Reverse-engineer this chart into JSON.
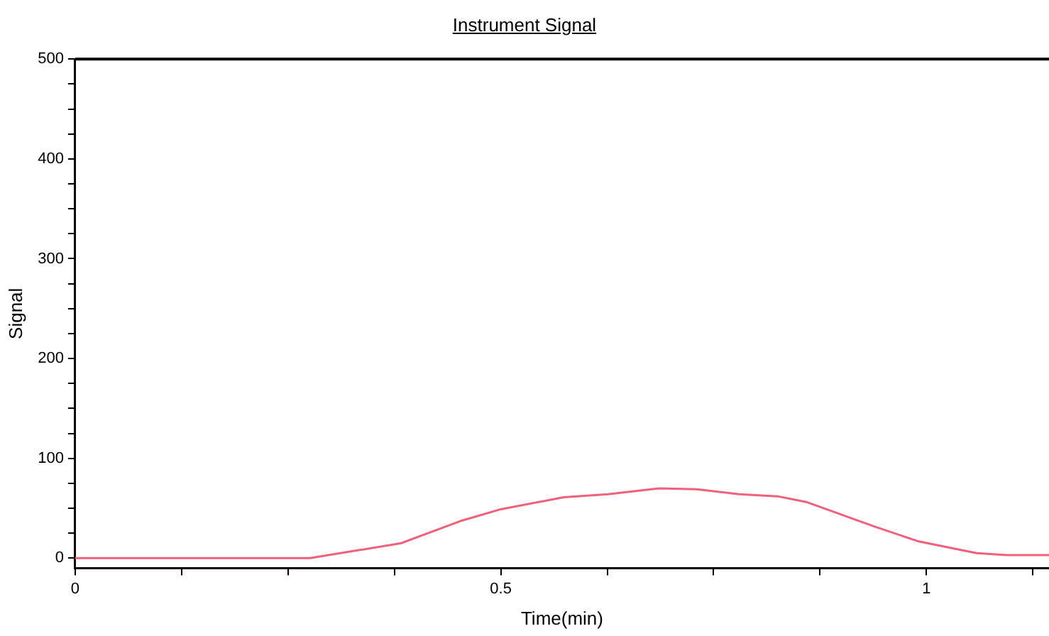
{
  "chart_data": {
    "type": "line",
    "title": "Instrument Signal",
    "xlabel": "Time(min)",
    "ylabel": "Signal",
    "x": [
      0,
      0.276,
      0.383,
      0.452,
      0.5,
      0.574,
      0.626,
      0.686,
      0.73,
      0.78,
      0.825,
      0.86,
      0.886,
      0.938,
      0.99,
      1.059,
      1.094,
      1.144
    ],
    "series": [
      {
        "color": "#f0607a",
        "values": [
          0,
          0,
          15,
          37,
          49,
          61,
          64,
          70,
          69,
          64,
          62,
          56,
          48,
          32,
          17,
          5,
          3,
          3
        ]
      }
    ],
    "xlim": [
      0,
      1.144
    ],
    "ylim": [
      -10,
      500
    ],
    "xticks": [
      0,
      {
        "value": 0.125,
        "label": null
      },
      {
        "value": 0.25,
        "label": null
      },
      {
        "value": 0.375,
        "label": null
      },
      0.5,
      {
        "value": 0.625,
        "label": null
      },
      {
        "value": 0.75,
        "label": null
      },
      {
        "value": 0.875,
        "label": null
      },
      1,
      {
        "value": 1.125,
        "label": null
      }
    ],
    "yticks": [
      0,
      {
        "value": 25,
        "label": null
      },
      {
        "value": 50,
        "label": null
      },
      {
        "value": 75,
        "label": null
      },
      100,
      {
        "value": 125,
        "label": null
      },
      {
        "value": 150,
        "label": null
      },
      {
        "value": 175,
        "label": null
      },
      200,
      {
        "value": 225,
        "label": null
      },
      {
        "value": 250,
        "label": null
      },
      {
        "value": 275,
        "label": null
      },
      300,
      {
        "value": 325,
        "label": null
      },
      {
        "value": 350,
        "label": null
      },
      {
        "value": 375,
        "label": null
      },
      400,
      {
        "value": 425,
        "label": null
      },
      {
        "value": 450,
        "label": null
      },
      {
        "value": 475,
        "label": null
      },
      500
    ],
    "grid": false,
    "legend": false,
    "marker": "none",
    "line_style": "solid"
  }
}
